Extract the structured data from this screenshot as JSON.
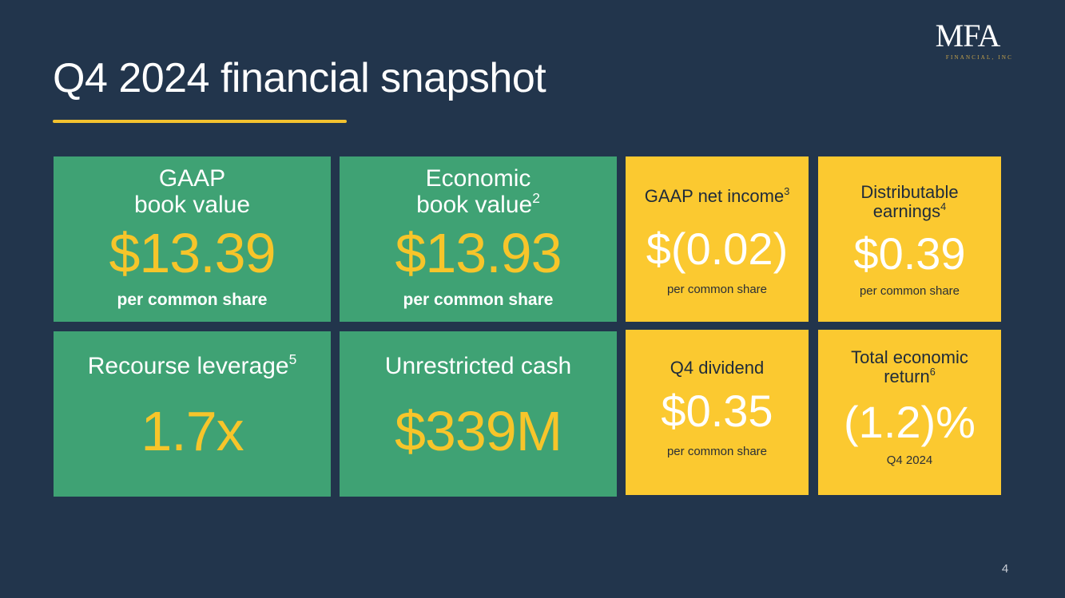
{
  "title": "Q4 2024 financial snapshot",
  "logo": {
    "main": "MFA",
    "sub": "FINANCIAL, INC"
  },
  "colors": {
    "background": "#22354c",
    "green_tile": "#3fa274",
    "yellow_tile": "#fbc930",
    "accent": "#f3c22f",
    "value_gold": "#f7c52a"
  },
  "tiles": {
    "gaap_book_value": {
      "line1": "GAAP",
      "line2": "book value",
      "value": "$13.39",
      "sub": "per common share"
    },
    "economic_book_value": {
      "line1": "Economic",
      "line2": "book value",
      "sup": "2",
      "value": "$13.93",
      "sub": "per common share"
    },
    "gaap_net_income": {
      "label": "GAAP net income",
      "sup": "3",
      "value": "$(0.02)",
      "sub": "per common share"
    },
    "distributable_earnings": {
      "line1": "Distributable",
      "line2": "earnings",
      "sup": "4",
      "value": "$0.39",
      "sub": "per common share"
    },
    "recourse_leverage": {
      "label": "Recourse leverage",
      "sup": "5",
      "value": "1.7x"
    },
    "unrestricted_cash": {
      "label": "Unrestricted cash",
      "value": "$339M"
    },
    "q4_dividend": {
      "label": "Q4 dividend",
      "value": "$0.35",
      "sub": "per common share"
    },
    "total_economic_return": {
      "line1": "Total economic",
      "line2": "return",
      "sup": "6",
      "value": "(1.2)%",
      "sub": "Q4 2024"
    }
  },
  "page_number": "4"
}
